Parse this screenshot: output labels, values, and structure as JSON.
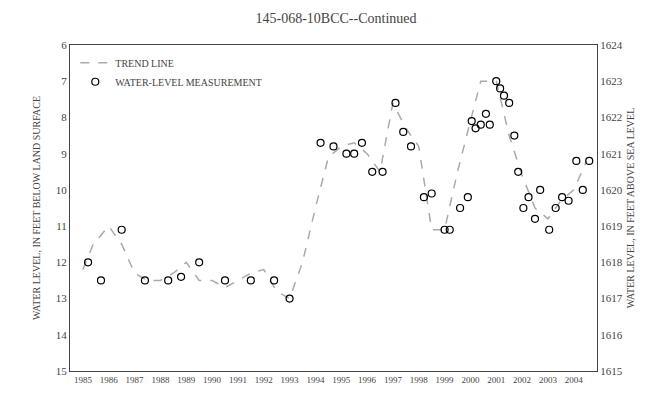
{
  "chart_data": {
    "type": "line",
    "title": "145-068-10BCC--Continued",
    "y_label": "WATER LEVEL, IN FEET BELOW LAND SURFACE",
    "y2_label": "WATER LEVEL, IN FEET ABOVE SEA LEVEL",
    "xlim": [
      1984.5,
      2004.9
    ],
    "xticks": [
      1985,
      1986,
      1987,
      1988,
      1989,
      1990,
      1991,
      1992,
      1993,
      1994,
      1995,
      1996,
      1997,
      1998,
      1999,
      2000,
      2001,
      2002,
      2003,
      2004
    ],
    "ylim": [
      15,
      6
    ],
    "yticks": [
      6,
      7,
      8,
      9,
      10,
      11,
      12,
      13,
      14,
      15
    ],
    "y2lim": [
      1615,
      1624
    ],
    "y2ticks": [
      1624,
      1623,
      1622,
      1621,
      1620,
      1619,
      1618,
      1617,
      1616,
      1615
    ],
    "grid": false,
    "legend": "upper left",
    "series": [
      {
        "name": "TREND LINE",
        "type": "line",
        "color": "#aaaaaa",
        "line_style": "dashed",
        "x": [
          1985.0,
          1985.4,
          1986.0,
          1986.5,
          1987.0,
          1987.5,
          1988.0,
          1988.5,
          1989.0,
          1989.5,
          1990.0,
          1990.5,
          1991.0,
          1991.5,
          1992.0,
          1992.5,
          1993.0,
          1993.5,
          1994.0,
          1994.5,
          1995.0,
          1995.5,
          1996.0,
          1996.5,
          1997.0,
          1997.5,
          1998.0,
          1998.5,
          1999.0,
          1999.5,
          2000.0,
          2000.4,
          2001.0,
          2001.5,
          2002.0,
          2002.5,
          2003.0,
          2003.5,
          2004.0,
          2004.5
        ],
        "values": [
          12.2,
          11.5,
          11.0,
          11.5,
          12.3,
          12.5,
          12.5,
          12.3,
          12.0,
          12.5,
          12.5,
          12.7,
          12.5,
          12.3,
          12.2,
          12.8,
          13.0,
          12.0,
          10.5,
          9.1,
          8.8,
          8.7,
          9.0,
          9.5,
          7.6,
          8.3,
          8.8,
          11.1,
          11.1,
          9.5,
          8.1,
          7.0,
          7.0,
          8.5,
          9.6,
          10.5,
          10.8,
          10.3,
          10.0,
          9.2
        ]
      },
      {
        "name": "WATER-LEVEL MEASUREMENT",
        "type": "scatter",
        "color": "#000000",
        "marker": "circle-open",
        "x": [
          1985.2,
          1985.7,
          1986.5,
          1987.4,
          1988.3,
          1988.8,
          1989.5,
          1990.5,
          1991.5,
          1992.4,
          1993.0,
          1994.2,
          1994.7,
          1995.2,
          1995.5,
          1995.8,
          1996.2,
          1996.6,
          1997.1,
          1997.4,
          1997.7,
          1998.2,
          1998.5,
          1999.0,
          1999.2,
          1999.6,
          1999.9,
          2000.05,
          2000.2,
          2000.4,
          2000.6,
          2000.75,
          2001.0,
          2001.15,
          2001.3,
          2001.5,
          2001.7,
          2001.85,
          2002.05,
          2002.25,
          2002.5,
          2002.7,
          2003.05,
          2003.3,
          2003.55,
          2003.8,
          2004.1,
          2004.35,
          2004.6
        ],
        "values": [
          12.0,
          12.5,
          11.1,
          12.5,
          12.5,
          12.4,
          12.0,
          12.5,
          12.5,
          12.5,
          13.0,
          8.7,
          8.8,
          9.0,
          9.0,
          8.7,
          9.5,
          9.5,
          7.6,
          8.4,
          8.8,
          10.2,
          10.1,
          11.1,
          11.1,
          10.5,
          10.2,
          8.1,
          8.3,
          8.2,
          7.9,
          8.2,
          7.0,
          7.2,
          7.4,
          7.6,
          8.5,
          9.5,
          10.5,
          10.2,
          10.8,
          10.0,
          11.1,
          10.5,
          10.2,
          10.3,
          9.2,
          10.0,
          9.2
        ]
      }
    ]
  }
}
